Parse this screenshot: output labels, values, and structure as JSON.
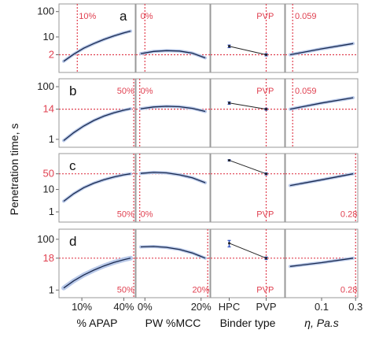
{
  "chart_data": {
    "type": "line",
    "ylabel": "Penetration time, s",
    "columns": [
      {
        "xlabel": "% APAP",
        "xticks": [
          "10%",
          "40%"
        ]
      },
      {
        "xlabel": "PW %MCC",
        "xticks": [
          "0%",
          "20%"
        ]
      },
      {
        "xlabel": "Binder type",
        "xticks": [
          "HPC",
          "PVP"
        ]
      },
      {
        "xlabel": "η, Pa.s",
        "xticks": [
          "0.1",
          "0.3"
        ]
      }
    ],
    "rows": [
      {
        "label": "a",
        "yticks": [
          "100",
          "10",
          "2"
        ],
        "ylog": [
          0.4,
          200
        ],
        "highlight_y": 2,
        "highlight_label": "2",
        "annotations": [
          "10%",
          "0%",
          "PVP",
          "0.059"
        ],
        "curves": [
          {
            "x": [
              0,
              0.15,
              0.3,
              0.45,
              0.6,
              0.75,
              0.9,
              1.0
            ],
            "y": [
              1.1,
              2.1,
              3.6,
              5.5,
              8.0,
              11.0,
              14.5,
              17.0
            ]
          },
          {
            "x": [
              0,
              0.2,
              0.4,
              0.6,
              0.8,
              1.0
            ],
            "y": [
              2.2,
              2.7,
              2.9,
              2.8,
              2.3,
              1.5
            ]
          },
          {
            "x": [
              0.25,
              0.75
            ],
            "y": [
              4.3,
              2.0
            ],
            "err": [
              0.5,
              0.2
            ]
          },
          {
            "x": [
              0,
              0.5,
              1.0
            ],
            "y": [
              2.0,
              3.4,
              5.5
            ]
          }
        ]
      },
      {
        "label": "b",
        "yticks": [
          "100",
          "14",
          "1"
        ],
        "ylog": [
          0.5,
          200
        ],
        "highlight_y": 14,
        "highlight_label": "14",
        "annotations": [
          "50%",
          "0%",
          "PVP",
          "0.059"
        ],
        "curves": [
          {
            "x": [
              0,
              0.15,
              0.3,
              0.45,
              0.6,
              0.75,
              0.9,
              1.0
            ],
            "y": [
              0.9,
              1.8,
              3.2,
              5.2,
              7.6,
              10.2,
              12.8,
              14.5
            ]
          },
          {
            "x": [
              0,
              0.2,
              0.4,
              0.6,
              0.8,
              1.0
            ],
            "y": [
              14.5,
              17.0,
              18.0,
              17.3,
              15.0,
              11.5
            ]
          },
          {
            "x": [
              0.25,
              0.75
            ],
            "y": [
              24,
              14
            ],
            "err": [
              2.5,
              1.2
            ]
          },
          {
            "x": [
              0,
              0.5,
              1.0
            ],
            "y": [
              14,
              24,
              38
            ]
          }
        ]
      },
      {
        "label": "c",
        "yticks": [
          "50",
          "10",
          "1"
        ],
        "ylog": [
          0.35,
          400
        ],
        "highlight_y": 50,
        "highlight_label": "50",
        "annotations": [
          "50%",
          "0%",
          "PVP",
          "0.28"
        ],
        "curves": [
          {
            "x": [
              0,
              0.15,
              0.3,
              0.45,
              0.6,
              0.75,
              0.9,
              1.0
            ],
            "y": [
              3.0,
              6.5,
              12,
              19,
              27,
              36,
              45,
              50
            ]
          },
          {
            "x": [
              0,
              0.2,
              0.4,
              0.6,
              0.8,
              1.0
            ],
            "y": [
              52,
              58,
              55,
              45,
              33,
              20
            ]
          },
          {
            "x": [
              0.25,
              0.75
            ],
            "y": [
              200,
              50
            ],
            "err": [
              14,
              5
            ]
          },
          {
            "x": [
              0,
              0.5,
              1.0
            ],
            "y": [
              15,
              27,
              50
            ]
          }
        ]
      },
      {
        "label": "d",
        "yticks": [
          "100",
          "18",
          "1"
        ],
        "ylog": [
          0.5,
          250
        ],
        "highlight_y": 18,
        "highlight_label": "18",
        "annotations": [
          "50%",
          "20%",
          "PVP",
          "0.28"
        ],
        "curves": [
          {
            "x": [
              0,
              0.15,
              0.3,
              0.45,
              0.6,
              0.75,
              0.9,
              1.0
            ],
            "y": [
              1.2,
              2.3,
              3.9,
              6.1,
              8.9,
              12.2,
              15.8,
              18.0
            ]
          },
          {
            "x": [
              0,
              0.2,
              0.4,
              0.6,
              0.8,
              1.0
            ],
            "y": [
              50,
              52,
              48,
              40,
              29,
              18
            ]
          },
          {
            "x": [
              0.25,
              0.75
            ],
            "y": [
              70,
              18
            ],
            "err": [
              20,
              2
            ]
          },
          {
            "x": [
              0,
              0.5,
              1.0
            ],
            "y": [
              8.5,
              12,
              18
            ]
          }
        ]
      }
    ]
  }
}
